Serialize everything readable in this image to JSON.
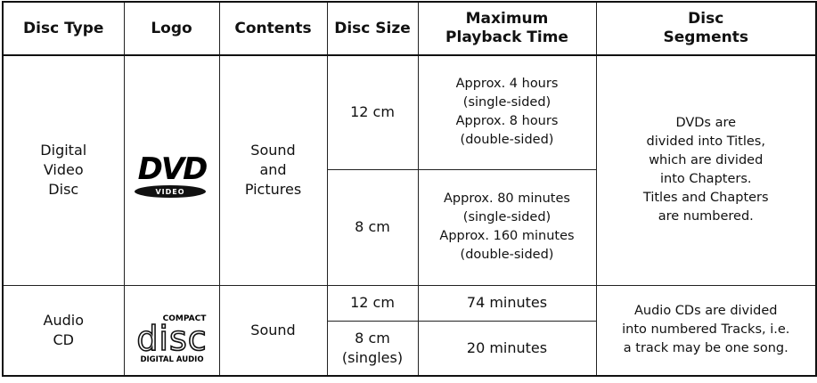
{
  "table": {
    "header": [
      "Disc Type",
      "Logo",
      "Contents",
      "Disc Size",
      "Maximum\nPlayback Time",
      "Disc\nSegments"
    ],
    "groups": [
      {
        "disc_type": "Digital\nVideo\nDisc",
        "logo": {
          "main": "DVD",
          "sub": "VIDEO"
        },
        "contents": "Sound\nand\nPictures",
        "sizes": [
          {
            "size": "12 cm",
            "time": "Approx. 4 hours\n(single-sided)\nApprox. 8 hours\n(double-sided)"
          },
          {
            "size": "8 cm",
            "time": "Approx. 80 minutes\n(single-sided)\nApprox. 160 minutes\n(double-sided)"
          }
        ],
        "segments": "DVDs are\ndivided into Titles,\nwhich are divided\ninto Chapters.\nTitles and Chapters\nare numbered."
      },
      {
        "disc_type": "Audio\nCD",
        "logo": {
          "top": "COMPACT",
          "main": "disc",
          "sub": "DIGITAL AUDIO"
        },
        "contents": "Sound",
        "sizes": [
          {
            "size": "12 cm",
            "time": "74 minutes"
          },
          {
            "size": "8 cm\n(singles)",
            "time": "20 minutes"
          }
        ],
        "segments": "Audio CDs are divided\ninto numbered Tracks, i.e.\na track may be one song."
      }
    ]
  }
}
